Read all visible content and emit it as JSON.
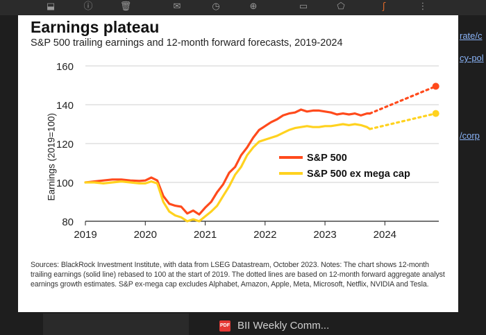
{
  "toolbar": {
    "icons": [
      "archive-icon",
      "report-icon",
      "delete-icon",
      "mail-icon",
      "clock-icon",
      "add-task-icon",
      "move-to-icon",
      "label-icon",
      "more-icon"
    ]
  },
  "side_links": [
    "rate/c",
    "cy-pol",
    "/corp"
  ],
  "card": {
    "title": "Earnings plateau",
    "subtitle": "S&P 500 trailing earnings and 12-month forward forecasts, 2019-2024",
    "footnote": "Sources: BlackRock Investment Institute, with data from LSEG Datastream, October 2023. Notes: The chart shows 12-month trailing earnings (solid line) rebased to 100 at the start of 2019. The dotted lines are based on 12-month forward aggregate analyst earnings growth estimates. S&P ex-mega cap excludes Alphabet, Amazon, Apple, Meta, Microsoft, Netflix, NVIDIA and Tesla."
  },
  "bottom": {
    "doc_label": "BII Weekly Comm...",
    "badge": "PDF"
  },
  "chart_data": {
    "type": "line",
    "title": "Earnings plateau",
    "subtitle": "S&P 500 trailing earnings and 12-month forward forecasts, 2019-2024",
    "xlabel": "",
    "ylabel": "Earnings (2019=100)",
    "x_ticks": [
      "2019",
      "2020",
      "2021",
      "2022",
      "2023",
      "2024"
    ],
    "y_ticks": [
      80,
      100,
      120,
      140,
      160
    ],
    "xlim": [
      2019,
      2024.9
    ],
    "ylim": [
      80,
      160
    ],
    "grid": "horizontal",
    "legend": "right",
    "series": [
      {
        "name": "S&P 500",
        "color": "#ff4a1c",
        "x": [
          2019.0,
          2019.15,
          2019.3,
          2019.45,
          2019.6,
          2019.75,
          2019.9,
          2020.0,
          2020.1,
          2020.2,
          2020.3,
          2020.4,
          2020.5,
          2020.6,
          2020.7,
          2020.8,
          2020.9,
          2021.0,
          2021.1,
          2021.2,
          2021.3,
          2021.4,
          2021.5,
          2021.6,
          2021.7,
          2021.8,
          2021.9,
          2022.0,
          2022.1,
          2022.2,
          2022.3,
          2022.4,
          2022.5,
          2022.6,
          2022.7,
          2022.8,
          2022.9,
          2023.0,
          2023.1,
          2023.2,
          2023.3,
          2023.4,
          2023.5,
          2023.6,
          2023.7,
          2023.75
        ],
        "values": [
          100,
          100.5,
          101,
          101.5,
          101.5,
          101,
          100.8,
          101,
          102.5,
          101,
          93,
          89,
          88,
          87.5,
          84,
          85.5,
          83.5,
          87,
          90,
          95,
          99,
          105,
          108,
          114,
          118,
          123,
          127,
          129,
          131,
          132.5,
          134.5,
          135.5,
          136,
          137.5,
          136.5,
          137,
          137,
          136.5,
          136,
          135,
          135.5,
          135,
          135.5,
          134.5,
          135.5,
          135.5
        ],
        "forecast": {
          "x": [
            2023.75,
            2024.85
          ],
          "values": [
            135.5,
            149.5
          ]
        }
      },
      {
        "name": "S&P 500 ex mega cap",
        "color": "#ffd21f",
        "x": [
          2019.0,
          2019.15,
          2019.3,
          2019.45,
          2019.6,
          2019.75,
          2019.9,
          2020.0,
          2020.1,
          2020.2,
          2020.3,
          2020.4,
          2020.5,
          2020.6,
          2020.7,
          2020.8,
          2020.9,
          2021.0,
          2021.1,
          2021.2,
          2021.3,
          2021.4,
          2021.5,
          2021.6,
          2021.7,
          2021.8,
          2021.9,
          2022.0,
          2022.1,
          2022.2,
          2022.3,
          2022.4,
          2022.5,
          2022.6,
          2022.7,
          2022.8,
          2022.9,
          2023.0,
          2023.1,
          2023.2,
          2023.3,
          2023.4,
          2023.5,
          2023.6,
          2023.7,
          2023.75
        ],
        "values": [
          100,
          100,
          99.5,
          100,
          100.5,
          100,
          99.5,
          99.5,
          100.5,
          99.5,
          90,
          85,
          83,
          82,
          80,
          81,
          80,
          82.5,
          85,
          88,
          93,
          98,
          104,
          108,
          114,
          118,
          121,
          122,
          123,
          124,
          125.5,
          127,
          128,
          128.5,
          129,
          128.5,
          128.5,
          129,
          129,
          129.5,
          130,
          129.5,
          130,
          129.5,
          128.5,
          127.5
        ],
        "forecast": {
          "x": [
            2023.75,
            2024.85
          ],
          "values": [
            127.5,
            135.5
          ]
        }
      }
    ]
  }
}
